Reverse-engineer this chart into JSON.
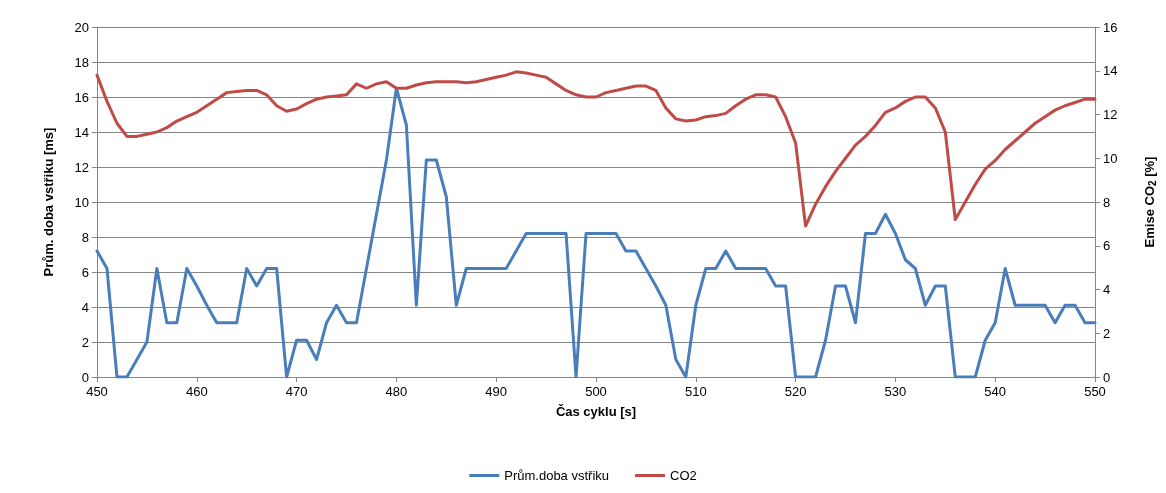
{
  "chart_data": {
    "type": "line",
    "xlabel": "Čas cyklu [s]",
    "ylabel": "Prům. doba vstřiku [ms]",
    "y2label": "Emise CO$_{2}$ [%]",
    "x": [
      450,
      451,
      452,
      453,
      454,
      455,
      456,
      457,
      458,
      459,
      460,
      461,
      462,
      463,
      464,
      465,
      466,
      467,
      468,
      469,
      470,
      471,
      472,
      473,
      474,
      475,
      476,
      477,
      478,
      479,
      480,
      481,
      482,
      483,
      484,
      485,
      486,
      487,
      488,
      489,
      490,
      491,
      492,
      493,
      494,
      495,
      496,
      497,
      498,
      499,
      500,
      501,
      502,
      503,
      504,
      505,
      506,
      507,
      508,
      509,
      510,
      511,
      512,
      513,
      514,
      515,
      516,
      517,
      518,
      519,
      520,
      521,
      522,
      523,
      524,
      525,
      526,
      527,
      528,
      529,
      530,
      531,
      532,
      533,
      534,
      535,
      536,
      537,
      538,
      539,
      540,
      541,
      542,
      543,
      544,
      545,
      546,
      547,
      548,
      549,
      550
    ],
    "series": [
      {
        "name": "Prům.doba vstřiku",
        "color": "#4a7ebb",
        "values": [
          7.2,
          6.2,
          0,
          0,
          1,
          2,
          6.2,
          3.1,
          3.1,
          6.2,
          5.2,
          4.1,
          3.1,
          3.1,
          3.1,
          6.2,
          5.2,
          6.2,
          6.2,
          0,
          2.1,
          2.1,
          1,
          3.1,
          4.1,
          3.1,
          3.1,
          6.2,
          9.3,
          12.4,
          16.5,
          14.4,
          4.1,
          12.4,
          12.4,
          10.3,
          4.1,
          6.2,
          6.2,
          6.2,
          6.2,
          6.2,
          7.2,
          8.2,
          8.2,
          8.2,
          8.2,
          8.2,
          0,
          8.2,
          8.2,
          8.2,
          8.2,
          7.2,
          7.2,
          6.2,
          5.2,
          4.1,
          1,
          0,
          4.1,
          6.2,
          6.2,
          7.2,
          6.2,
          6.2,
          6.2,
          6.2,
          5.2,
          5.2,
          0,
          0,
          0,
          2.1,
          5.2,
          5.2,
          3.1,
          8.2,
          8.2,
          9.3,
          8.2,
          6.7,
          6.2,
          4.1,
          5.2,
          5.2,
          0,
          0,
          0,
          2.1,
          3.1,
          6.2,
          4.1,
          4.1,
          4.1,
          4.1,
          3.1,
          4.1,
          4.1,
          3.1,
          3.1
        ]
      },
      {
        "name": "CO2",
        "color": "#be4b48",
        "axis": "y2",
        "values": [
          13.8,
          12.6,
          11.6,
          11,
          11,
          11.1,
          11.2,
          11.4,
          11.7,
          11.9,
          12.1,
          12.4,
          12.7,
          13,
          13.05,
          13.1,
          13.1,
          12.9,
          12.4,
          12.15,
          12.25,
          12.5,
          12.7,
          12.8,
          12.85,
          12.9,
          13.4,
          13.2,
          13.4,
          13.5,
          13.2,
          13.2,
          13.35,
          13.45,
          13.5,
          13.5,
          13.5,
          13.45,
          13.5,
          13.6,
          13.7,
          13.8,
          13.95,
          13.9,
          13.8,
          13.7,
          13.4,
          13.1,
          12.9,
          12.8,
          12.8,
          13,
          13.1,
          13.2,
          13.3,
          13.3,
          13.1,
          12.3,
          11.8,
          11.7,
          11.75,
          11.9,
          11.95,
          12.05,
          12.4,
          12.7,
          12.9,
          12.9,
          12.8,
          11.9,
          10.7,
          6.9,
          7.9,
          8.7,
          9.4,
          10,
          10.6,
          11,
          11.5,
          12.1,
          12.3,
          12.6,
          12.8,
          12.8,
          12.3,
          11.2,
          7.2,
          8,
          8.8,
          9.5,
          9.9,
          10.4,
          10.8,
          11.2,
          11.6,
          11.9,
          12.2,
          12.4,
          12.55,
          12.7,
          12.7
        ]
      }
    ],
    "xlim": [
      450,
      550
    ],
    "xticks": [
      450,
      460,
      470,
      480,
      490,
      500,
      510,
      520,
      530,
      540,
      550
    ],
    "ylim": [
      0,
      20
    ],
    "yticks": [
      0,
      2,
      4,
      6,
      8,
      10,
      12,
      14,
      16,
      18,
      20
    ],
    "y2lim": [
      0,
      16
    ],
    "y2ticks": [
      0,
      2,
      4,
      6,
      8,
      10,
      12,
      14,
      16
    ],
    "grid": "y",
    "legend": "bottom",
    "marker": "none",
    "line_style": "solid"
  }
}
